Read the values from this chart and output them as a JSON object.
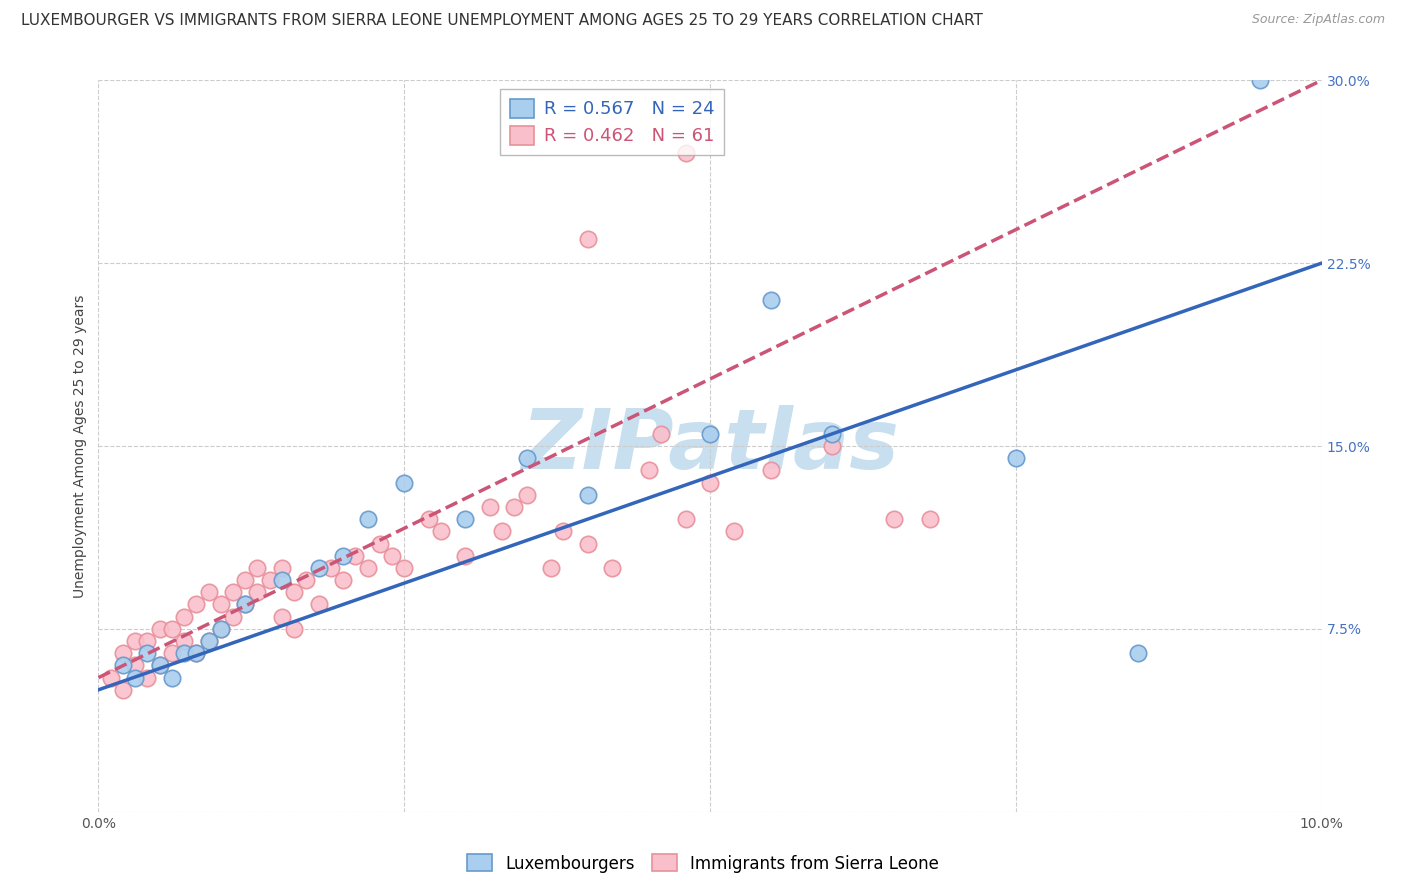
{
  "title": "LUXEMBOURGER VS IMMIGRANTS FROM SIERRA LEONE UNEMPLOYMENT AMONG AGES 25 TO 29 YEARS CORRELATION CHART",
  "source": "Source: ZipAtlas.com",
  "ylabel": "Unemployment Among Ages 25 to 29 years",
  "xlim": [
    0.0,
    0.1
  ],
  "ylim": [
    0.0,
    0.3
  ],
  "xticks": [
    0.0,
    0.025,
    0.05,
    0.075,
    0.1
  ],
  "xtick_labels": [
    "0.0%",
    "",
    "",
    "",
    "10.0%"
  ],
  "ytick_labels_right": [
    "",
    "7.5%",
    "15.0%",
    "22.5%",
    "30.0%"
  ],
  "yticks": [
    0.0,
    0.075,
    0.15,
    0.225,
    0.3
  ],
  "grid_color": "#cccccc",
  "background_color": "#ffffff",
  "watermark": "ZIPatlas",
  "watermark_color": "#c8dff0",
  "series": [
    {
      "name": "Luxembourgers",
      "R": 0.567,
      "N": 24,
      "color": "#aacfee",
      "edge_color": "#6699cc",
      "line_color": "#3366bb",
      "line_style": "-",
      "scatter_x": [
        0.002,
        0.003,
        0.004,
        0.005,
        0.006,
        0.007,
        0.008,
        0.009,
        0.01,
        0.012,
        0.015,
        0.018,
        0.02,
        0.022,
        0.025,
        0.03,
        0.035,
        0.04,
        0.05,
        0.055,
        0.06,
        0.075,
        0.085,
        0.095
      ],
      "scatter_y": [
        0.06,
        0.055,
        0.065,
        0.06,
        0.055,
        0.065,
        0.065,
        0.07,
        0.075,
        0.085,
        0.095,
        0.1,
        0.105,
        0.12,
        0.135,
        0.12,
        0.145,
        0.13,
        0.155,
        0.21,
        0.155,
        0.145,
        0.065,
        0.3
      ],
      "trend_x": [
        0.0,
        0.1
      ],
      "trend_y": [
        0.05,
        0.225
      ]
    },
    {
      "name": "Immigrants from Sierra Leone",
      "R": 0.462,
      "N": 61,
      "color": "#f9c0cc",
      "edge_color": "#e8909a",
      "line_color": "#cc5577",
      "line_style": "--",
      "scatter_x": [
        0.001,
        0.002,
        0.002,
        0.003,
        0.003,
        0.004,
        0.004,
        0.005,
        0.005,
        0.006,
        0.006,
        0.007,
        0.007,
        0.008,
        0.008,
        0.009,
        0.009,
        0.01,
        0.01,
        0.011,
        0.011,
        0.012,
        0.012,
        0.013,
        0.013,
        0.014,
        0.015,
        0.015,
        0.016,
        0.016,
        0.017,
        0.018,
        0.019,
        0.02,
        0.021,
        0.022,
        0.023,
        0.024,
        0.025,
        0.027,
        0.028,
        0.03,
        0.032,
        0.033,
        0.034,
        0.035,
        0.037,
        0.038,
        0.04,
        0.042,
        0.045,
        0.046,
        0.048,
        0.05,
        0.052,
        0.055,
        0.06,
        0.065,
        0.068,
        0.048,
        0.04
      ],
      "scatter_y": [
        0.055,
        0.05,
        0.065,
        0.06,
        0.07,
        0.055,
        0.07,
        0.06,
        0.075,
        0.065,
        0.075,
        0.07,
        0.08,
        0.065,
        0.085,
        0.07,
        0.09,
        0.075,
        0.085,
        0.08,
        0.09,
        0.085,
        0.095,
        0.09,
        0.1,
        0.095,
        0.08,
        0.1,
        0.075,
        0.09,
        0.095,
        0.085,
        0.1,
        0.095,
        0.105,
        0.1,
        0.11,
        0.105,
        0.1,
        0.12,
        0.115,
        0.105,
        0.125,
        0.115,
        0.125,
        0.13,
        0.1,
        0.115,
        0.11,
        0.1,
        0.14,
        0.155,
        0.12,
        0.135,
        0.115,
        0.14,
        0.15,
        0.12,
        0.12,
        0.27,
        0.235
      ],
      "trend_x": [
        0.0,
        0.1
      ],
      "trend_y": [
        0.055,
        0.3
      ]
    }
  ],
  "title_fontsize": 11,
  "axis_fontsize": 10,
  "tick_fontsize": 10,
  "legend_fontsize": 12
}
